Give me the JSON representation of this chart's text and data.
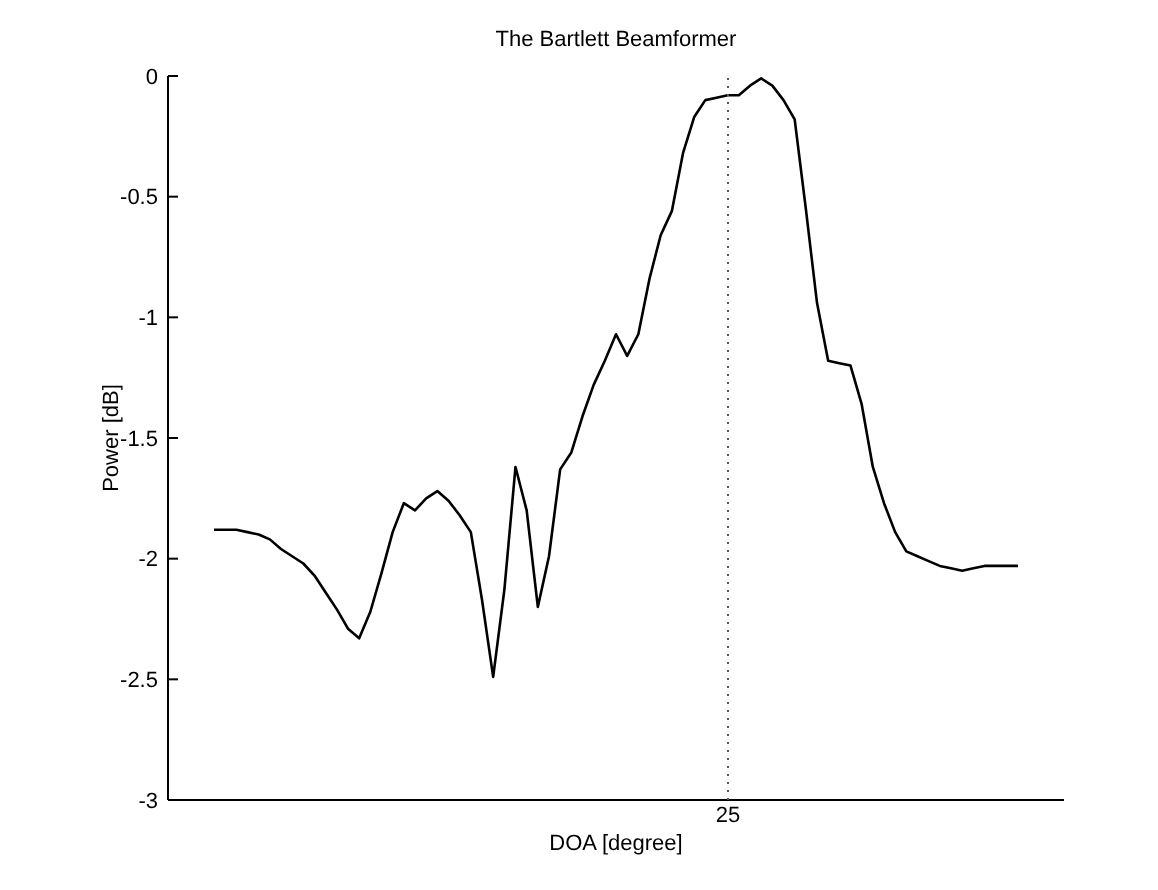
{
  "chart_data": {
    "type": "line",
    "title": "The Bartlett Beamformer",
    "xlabel": "DOA [degree]",
    "ylabel": "Power [dB]",
    "annotations": [
      "25"
    ],
    "categories": [
      null,
      null,
      null,
      null,
      null,
      null,
      null,
      null,
      null,
      null,
      null,
      null,
      null,
      null,
      null,
      null,
      null,
      null,
      null,
      null,
      null,
      null,
      null,
      null,
      null,
      null,
      null,
      null,
      null,
      null,
      null,
      null,
      null,
      null,
      null,
      null,
      null,
      null,
      null,
      null,
      null,
      null,
      null,
      null,
      null,
      null,
      null,
      null,
      null,
      null,
      null,
      null,
      null,
      null,
      null,
      null,
      null,
      null,
      null,
      null,
      null,
      null,
      null,
      null,
      null,
      null,
      null,
      null,
      null,
      null,
      null,
      null,
      null
    ],
    "ylim": [
      -3,
      0
    ],
    "yticks": [
      0,
      -0.5,
      -1,
      -1.5,
      -2,
      -2.5,
      -3
    ],
    "marker": "none",
    "line_style": "solid",
    "series": [
      {
        "color": "#000000",
        "values": [
          -1.88,
          -1.88,
          -1.88,
          -1.89,
          -1.9,
          -1.92,
          -1.96,
          -1.99,
          -2.02,
          -2.07,
          -2.14,
          -2.21,
          -2.29,
          -2.33,
          -2.22,
          -2.06,
          -1.89,
          -1.77,
          -1.8,
          -1.75,
          -1.72,
          -1.76,
          -1.82,
          -1.89,
          -2.17,
          -2.49,
          -2.13,
          -1.62,
          -1.8,
          -2.2,
          -1.99,
          -1.63,
          -1.56,
          -1.41,
          -1.28,
          -1.18,
          -1.07,
          -1.16,
          -1.07,
          -0.84,
          -0.66,
          -0.56,
          -0.32,
          -0.17,
          -0.1,
          -0.09,
          -0.08,
          -0.08,
          -0.04,
          -0.01,
          -0.04,
          -0.1,
          -0.18,
          -0.55,
          -0.94,
          -1.18,
          -1.19,
          -1.2,
          -1.36,
          -1.62,
          -1.77,
          -1.89,
          -1.97,
          -1.99,
          -2.01,
          -2.03,
          -2.04,
          -2.05,
          -2.04,
          -2.03,
          -2.03,
          -2.03,
          -2.03
        ]
      }
    ]
  }
}
